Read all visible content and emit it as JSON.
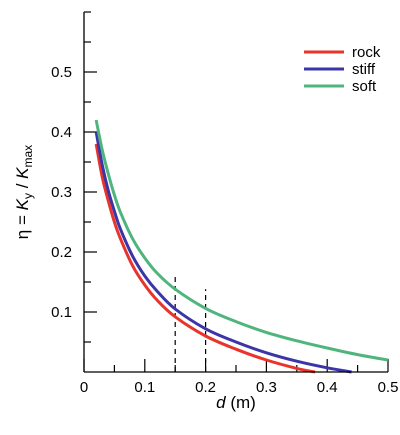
{
  "chart_data": {
    "type": "line",
    "xlabel_var": "d",
    "xlabel_unit": " (m)",
    "ylabel_main": "η = ",
    "ylabel_K1": "K",
    "ylabel_sub1": "y",
    "ylabel_slash": " / ",
    "ylabel_K2": "K",
    "ylabel_sub2": "max",
    "xlim": [
      0,
      0.5
    ],
    "ylim": [
      0,
      0.6
    ],
    "x_ticks": [
      {
        "value": 0,
        "label": "0"
      },
      {
        "value": 0.1,
        "label": "0.1"
      },
      {
        "value": 0.2,
        "label": "0.2"
      },
      {
        "value": 0.3,
        "label": "0.3"
      },
      {
        "value": 0.4,
        "label": "0.4"
      },
      {
        "value": 0.5,
        "label": "0.5"
      }
    ],
    "y_ticks": [
      {
        "value": 0.1,
        "label": "0.1"
      },
      {
        "value": 0.2,
        "label": "0.2"
      },
      {
        "value": 0.3,
        "label": "0.3"
      },
      {
        "value": 0.4,
        "label": "0.4"
      },
      {
        "value": 0.5,
        "label": "0.5"
      }
    ],
    "x_minor_step": 0.05,
    "y_minor_step": 0.05,
    "legend_position": "top-right",
    "series": [
      {
        "name": "rock",
        "color": "#e8342a",
        "x": [
          0.02,
          0.03,
          0.04,
          0.05,
          0.06,
          0.08,
          0.1,
          0.12,
          0.15,
          0.2,
          0.25,
          0.3,
          0.35,
          0.38
        ],
        "y": [
          0.38,
          0.325,
          0.285,
          0.25,
          0.222,
          0.177,
          0.145,
          0.12,
          0.092,
          0.06,
          0.038,
          0.02,
          0.006,
          0.0
        ]
      },
      {
        "name": "stiff",
        "color": "#3b35a8",
        "x": [
          0.02,
          0.03,
          0.04,
          0.05,
          0.06,
          0.08,
          0.1,
          0.12,
          0.15,
          0.2,
          0.25,
          0.3,
          0.35,
          0.4,
          0.44
        ],
        "y": [
          0.4,
          0.345,
          0.302,
          0.268,
          0.238,
          0.193,
          0.16,
          0.135,
          0.105,
          0.072,
          0.05,
          0.032,
          0.018,
          0.007,
          0.0
        ]
      },
      {
        "name": "soft",
        "color": "#4fb57c",
        "x": [
          0.02,
          0.03,
          0.04,
          0.05,
          0.06,
          0.08,
          0.1,
          0.12,
          0.15,
          0.2,
          0.25,
          0.3,
          0.35,
          0.4,
          0.45,
          0.5
        ],
        "y": [
          0.42,
          0.37,
          0.33,
          0.295,
          0.266,
          0.222,
          0.19,
          0.165,
          0.138,
          0.106,
          0.084,
          0.066,
          0.052,
          0.04,
          0.029,
          0.02
        ]
      }
    ],
    "reference_lines": [
      {
        "x": 0.15,
        "y_top": 0.165
      },
      {
        "x": 0.2,
        "y_top": 0.138
      }
    ]
  }
}
